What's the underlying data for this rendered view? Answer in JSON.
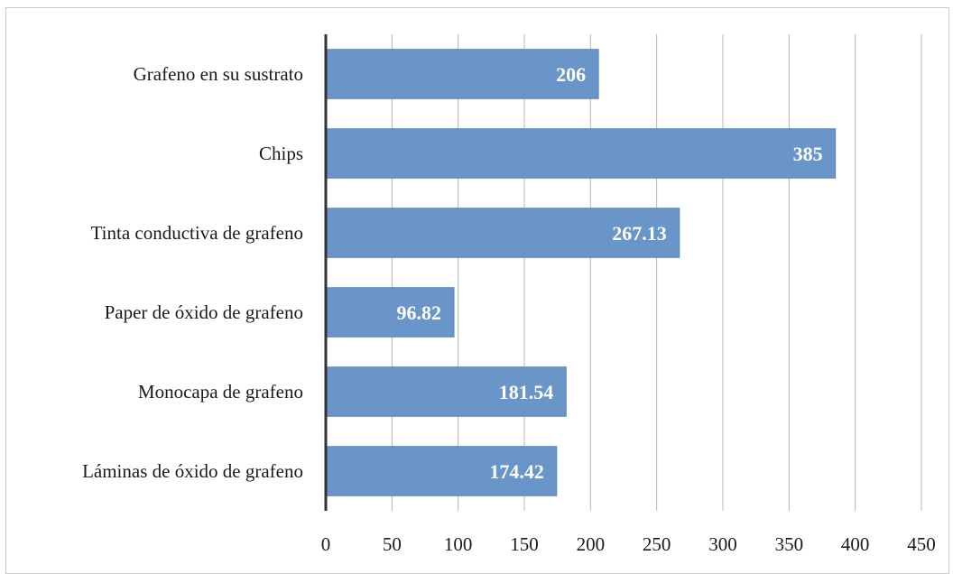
{
  "chart_data": {
    "type": "bar",
    "orientation": "horizontal",
    "categories": [
      "Grafeno en su sustrato",
      "Chips",
      "Tinta conductiva de grafeno",
      "Paper de óxido de grafeno",
      "Monocapa de grafeno",
      "Láminas de óxido de grafeno"
    ],
    "values": [
      206,
      385,
      267.13,
      96.82,
      181.54,
      174.42
    ],
    "data_labels": [
      "206",
      "385",
      "267.13",
      "96.82",
      "181.54",
      "174.42"
    ],
    "x_ticks": [
      0,
      50,
      100,
      150,
      200,
      250,
      300,
      350,
      400,
      450
    ],
    "xlim": [
      0,
      450
    ],
    "title": "",
    "xlabel": "",
    "ylabel": "",
    "grid": "vertical",
    "legend": "none",
    "colors": {
      "bar": "#6a95c8",
      "bar_edge": "#5a85b8",
      "axis": "#333333",
      "grid": "#b4b4b4",
      "data_label": "#ffffff"
    }
  }
}
